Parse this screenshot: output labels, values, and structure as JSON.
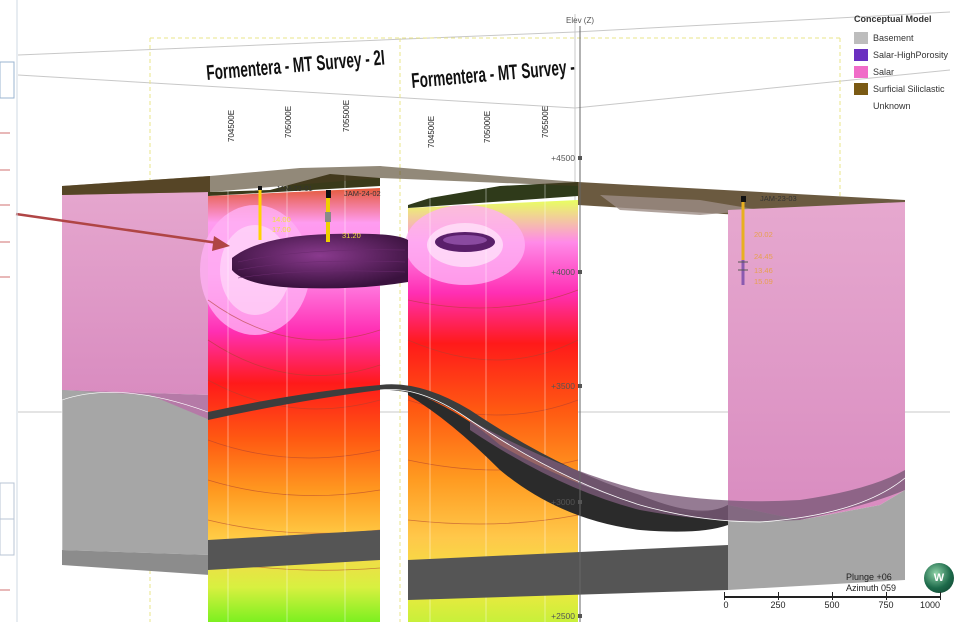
{
  "sections": [
    {
      "title": "Formentera - MT Survey - 2I",
      "easting_ticks": [
        "704500E",
        "705000E",
        "705500E"
      ]
    },
    {
      "title": "Formentera - MT Survey -",
      "easting_ticks": [
        "704500E",
        "705000E",
        "705500E"
      ]
    }
  ],
  "elevation_axis": {
    "label": "Elev (Z)",
    "ticks": [
      "+4500",
      "+4000",
      "+3500",
      "+3000",
      "+2500"
    ]
  },
  "legend": {
    "title": "Conceptual Model",
    "items": [
      {
        "label": "Basement",
        "color": "#bdbdbd"
      },
      {
        "label": "Salar-HighPorosity",
        "color": "#6a2fc0"
      },
      {
        "label": "Salar",
        "color": "#f06cc8"
      },
      {
        "label": "Surficial Siliclastic",
        "color": "#7a5a14"
      },
      {
        "label": "Unknown",
        "color": ""
      }
    ]
  },
  "drillholes": [
    {
      "name": "JAM-23-01",
      "depths": [
        "14.00",
        "17.00"
      ]
    },
    {
      "name": "JAM-24-02",
      "depths": [
        "31.20"
      ]
    },
    {
      "name": "JAM-23-03",
      "depths": [
        "20.02",
        "24.45",
        "13.46",
        "15.09"
      ]
    }
  ],
  "orientation": {
    "plunge": "Plunge +06",
    "azimuth": "Azimuth 059"
  },
  "compass_label": "W",
  "scale_bar": {
    "labels": [
      "0",
      "250",
      "500",
      "750",
      "1000"
    ]
  }
}
